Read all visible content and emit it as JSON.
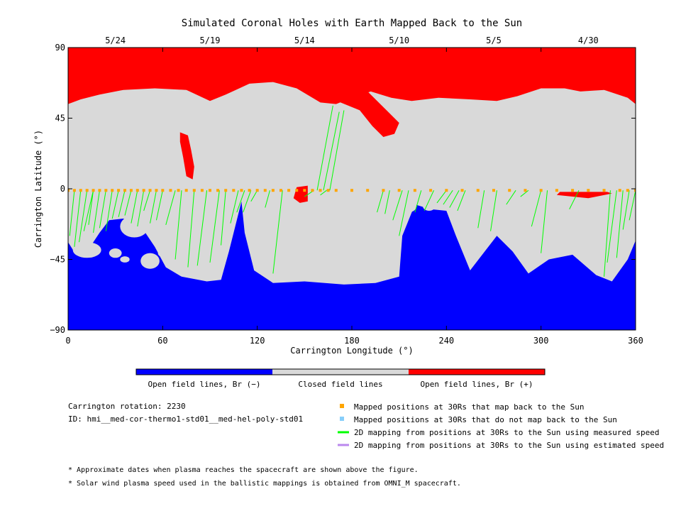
{
  "chart_data": {
    "type": "heatmap",
    "title": "Simulated Coronal Holes with Earth Mapped Back to the Sun",
    "xlabel": "Carrington Longitude (°)",
    "ylabel": "Carrington Latitude (°)",
    "xlim": [
      0,
      360
    ],
    "ylim": [
      -90,
      90
    ],
    "x_ticks": [
      0,
      60,
      120,
      180,
      240,
      300,
      360
    ],
    "y_ticks": [
      {
        "v": 90,
        "label": "90"
      },
      {
        "v": 45,
        "label": "45"
      },
      {
        "v": 0,
        "label": "0"
      },
      {
        "v": -45,
        "label": "−45"
      },
      {
        "v": -90,
        "label": "−90"
      }
    ],
    "top_date_ticks": [
      {
        "lon": 30,
        "label": "5/24"
      },
      {
        "lon": 90,
        "label": "5/19"
      },
      {
        "lon": 150,
        "label": "5/14"
      },
      {
        "lon": 210,
        "label": "5/10"
      },
      {
        "lon": 270,
        "label": "5/5"
      },
      {
        "lon": 330,
        "label": "4/30"
      }
    ],
    "colors": {
      "open_neg": "#0000ff",
      "closed": "#d9d9d9",
      "open_pos": "#ff0000",
      "mapped": "#ffa500",
      "unmapped": "#87cefa",
      "measured": "#00ff00",
      "estimated": "#bb88ee"
    },
    "colorbar": [
      {
        "label": "Open field lines, Br (−)",
        "color": "#0000ff"
      },
      {
        "label": "Closed field lines",
        "color": "#d9d9d9"
      },
      {
        "label": "Open field lines, Br (+)",
        "color": "#ff0000"
      }
    ],
    "north_boundary": [
      [
        0,
        54
      ],
      [
        8,
        57
      ],
      [
        20,
        60
      ],
      [
        35,
        63
      ],
      [
        55,
        64
      ],
      [
        75,
        63
      ],
      [
        90,
        56
      ],
      [
        100,
        60
      ],
      [
        115,
        67
      ],
      [
        130,
        68
      ],
      [
        145,
        64
      ],
      [
        160,
        55
      ],
      [
        170,
        54
      ],
      [
        180,
        58
      ],
      [
        192,
        62
      ],
      [
        205,
        58
      ],
      [
        218,
        56
      ],
      [
        235,
        58
      ],
      [
        255,
        57
      ],
      [
        272,
        56
      ],
      [
        285,
        59
      ],
      [
        300,
        64
      ],
      [
        315,
        64
      ],
      [
        325,
        62
      ],
      [
        340,
        63
      ],
      [
        355,
        58
      ],
      [
        360,
        54
      ]
    ],
    "south_boundary": [
      [
        0,
        -34
      ],
      [
        5,
        -42
      ],
      [
        12,
        -40
      ],
      [
        20,
        -28
      ],
      [
        26,
        -20
      ],
      [
        35,
        -19
      ],
      [
        45,
        -22
      ],
      [
        55,
        -37
      ],
      [
        62,
        -50
      ],
      [
        72,
        -56
      ],
      [
        88,
        -59
      ],
      [
        97,
        -58
      ],
      [
        102,
        -40
      ],
      [
        107,
        -20
      ],
      [
        110,
        -8
      ],
      [
        112,
        -28
      ],
      [
        118,
        -52
      ],
      [
        130,
        -60
      ],
      [
        150,
        -59
      ],
      [
        175,
        -61
      ],
      [
        195,
        -60
      ],
      [
        210,
        -56
      ],
      [
        212,
        -30
      ],
      [
        220,
        -10
      ],
      [
        230,
        -13
      ],
      [
        240,
        -14
      ],
      [
        246,
        -30
      ],
      [
        255,
        -52
      ],
      [
        265,
        -39
      ],
      [
        272,
        -30
      ],
      [
        282,
        -40
      ],
      [
        292,
        -54
      ],
      [
        305,
        -45
      ],
      [
        320,
        -42
      ],
      [
        335,
        -55
      ],
      [
        345,
        -59
      ],
      [
        355,
        -45
      ],
      [
        360,
        -33
      ]
    ],
    "south_islands": [
      [
        12,
        -39,
        9,
        5
      ],
      [
        42,
        -24,
        9,
        7
      ],
      [
        52,
        -46,
        6,
        5
      ],
      [
        62,
        -41,
        5,
        3
      ],
      [
        30,
        -41,
        4,
        3
      ],
      [
        36,
        -45,
        3,
        2
      ],
      [
        216,
        -11,
        5,
        4
      ],
      [
        229,
        -11,
        4,
        3
      ]
    ],
    "north_red_patches": [
      [
        [
          71,
          36
        ],
        [
          76,
          34
        ],
        [
          78,
          25
        ],
        [
          80,
          14
        ],
        [
          79,
          6
        ],
        [
          75,
          8
        ],
        [
          73,
          20
        ],
        [
          71,
          30
        ]
      ],
      [
        [
          145,
          1
        ],
        [
          152,
          2
        ],
        [
          152,
          -8
        ],
        [
          147,
          -9
        ],
        [
          143,
          -6
        ]
      ],
      [
        [
          310,
          -4
        ],
        [
          330,
          -6
        ],
        [
          345,
          -3
        ],
        [
          342,
          -2
        ],
        [
          312,
          -2
        ]
      ],
      [
        [
          160,
          62
        ],
        [
          168,
          57
        ],
        [
          185,
          50
        ],
        [
          193,
          40
        ],
        [
          200,
          33
        ],
        [
          207,
          35
        ],
        [
          210,
          42
        ],
        [
          202,
          50
        ],
        [
          190,
          62
        ],
        [
          178,
          64
        ]
      ]
    ],
    "series": [
      {
        "name": "Mapped positions at 30Rs that map back to the Sun",
        "type": "points",
        "lat": -1,
        "lon": [
          0,
          4,
          8,
          12,
          16,
          20,
          24,
          28,
          32,
          36,
          40,
          44,
          48,
          52,
          56,
          60,
          65,
          70,
          75,
          80,
          85,
          90,
          95,
          100,
          105,
          110,
          115,
          120,
          125,
          130,
          135,
          140,
          145,
          150,
          155,
          160,
          165,
          170,
          180,
          190,
          200,
          210,
          220,
          230,
          240,
          250,
          260,
          270,
          280,
          290,
          300,
          310,
          320,
          330,
          340,
          350,
          355,
          360
        ]
      },
      {
        "name": "2D mapping from positions at 30Rs to the Sun using measured speed",
        "type": "mappings",
        "pairs": [
          [
            1,
            -30
          ],
          [
            4,
            -37
          ],
          [
            7,
            -34
          ],
          [
            10,
            -27
          ],
          [
            13,
            -23
          ],
          [
            16,
            -28
          ],
          [
            20,
            -25
          ],
          [
            24,
            -27
          ],
          [
            28,
            -19
          ],
          [
            32,
            -18
          ],
          [
            36,
            -17
          ],
          [
            40,
            -22
          ],
          [
            44,
            -24
          ],
          [
            48,
            -14
          ],
          [
            52,
            -22
          ],
          [
            56,
            -20
          ],
          [
            62,
            -23
          ],
          [
            68,
            -45
          ],
          [
            76,
            -50
          ],
          [
            82,
            -49
          ],
          [
            90,
            -47
          ],
          [
            97,
            -36
          ],
          [
            103,
            -22
          ],
          [
            107,
            -15
          ],
          [
            111,
            -15
          ],
          [
            116,
            -8
          ],
          [
            125,
            -12
          ],
          [
            130,
            -54
          ],
          [
            150,
            -5
          ],
          [
            160,
            -4
          ],
          [
            168,
            53
          ],
          [
            172,
            49
          ],
          [
            175,
            50
          ],
          [
            196,
            -15
          ],
          [
            201,
            -16
          ],
          [
            206,
            -20
          ],
          [
            210,
            -30
          ],
          [
            220,
            -15
          ],
          [
            226,
            -14
          ],
          [
            234,
            -9
          ],
          [
            238,
            -10
          ],
          [
            242,
            -12
          ],
          [
            247,
            -14
          ],
          [
            260,
            -25
          ],
          [
            268,
            -27
          ],
          [
            278,
            -10
          ],
          [
            287,
            -5
          ],
          [
            294,
            -24
          ],
          [
            300,
            -41
          ],
          [
            318,
            -13
          ],
          [
            340,
            -56
          ],
          [
            342,
            -47
          ],
          [
            348,
            -44
          ],
          [
            352,
            -26
          ],
          [
            356,
            -20
          ]
        ]
      },
      {
        "name": "Mapped positions at 30Rs that do not map back to the Sun",
        "type": "points",
        "lon": []
      },
      {
        "name": "2D mapping from positions at 30Rs to the Sun using estimated speed",
        "type": "mappings",
        "pairs": []
      }
    ]
  },
  "legend": {
    "items": [
      {
        "label": "Mapped positions at 30Rs that map back to the Sun",
        "color": "#ffa500",
        "kind": "square"
      },
      {
        "label": "Mapped positions at 30Rs that do not map back to the Sun",
        "color": "#87cefa",
        "kind": "square"
      },
      {
        "label": "2D mapping from positions at 30Rs to the Sun using measured speed",
        "color": "#00ff00",
        "kind": "line"
      },
      {
        "label": "2D mapping from positions at 30Rs to the Sun using estimated speed",
        "color": "#bb88ee",
        "kind": "line"
      }
    ]
  },
  "info": {
    "rotation": "Carrington rotation: 2230",
    "id": "ID: hmi__med-cor-thermo1-std01__med-hel-poly-std01"
  },
  "notes": [
    "* Approximate dates when plasma reaches the spacecraft are shown above the figure.",
    "* Solar wind plasma speed used in the ballistic mappings is obtained from OMNI_M spacecraft."
  ]
}
